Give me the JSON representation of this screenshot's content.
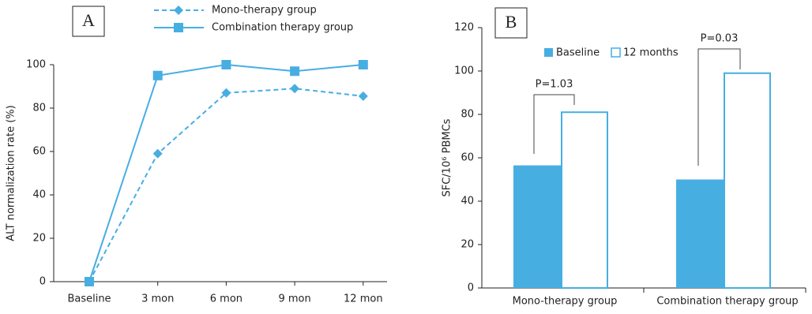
{
  "chart_data": [
    {
      "type": "line",
      "panel": "A",
      "ylabel": "ALT normalization rate (%)",
      "categories": [
        "Baseline",
        "3 mon",
        "6 mon",
        "9 mon",
        "12 mon"
      ],
      "series": [
        {
          "name": "Mono-therapy group",
          "color": "#47aee2",
          "values": [
            0,
            59,
            87,
            89,
            85.5
          ]
        },
        {
          "name": "Combination therapy group",
          "color": "#47aee2",
          "values": [
            0,
            95,
            100,
            97,
            100
          ]
        }
      ],
      "ylim": [
        0,
        100
      ],
      "yticks": [
        0,
        20,
        40,
        60,
        80,
        100
      ]
    },
    {
      "type": "bar",
      "panel": "B",
      "ylabel": "SFC/10⁶ PBMCs",
      "categories": [
        "Mono-therapy group",
        "Combination therapy group"
      ],
      "series": [
        {
          "name": "Baseline",
          "color": "#47aee2",
          "values": [
            56.5,
            50
          ]
        },
        {
          "name": "12 months",
          "color": "#47aee2",
          "values": [
            81,
            99
          ]
        }
      ],
      "annotations": [
        "P=1.03",
        "P=0.03"
      ],
      "ylim": [
        0,
        120
      ],
      "yticks": [
        0,
        20,
        40,
        60,
        80,
        100,
        120
      ]
    }
  ]
}
